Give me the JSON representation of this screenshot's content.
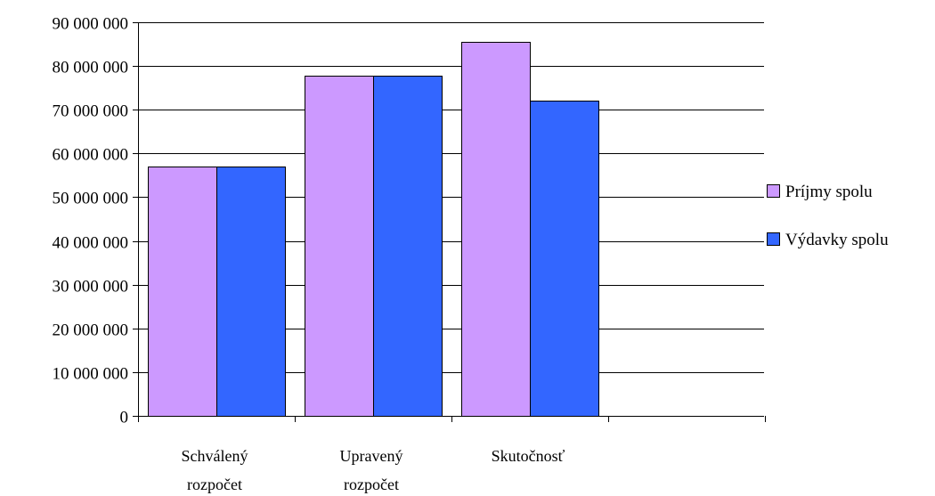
{
  "chart_data": {
    "type": "bar",
    "title": "",
    "xlabel": "",
    "ylabel": "",
    "categories": [
      [
        "Schválený",
        "rozpočet"
      ],
      [
        "Upravený",
        "rozpočet"
      ],
      [
        "Skutočnosť"
      ]
    ],
    "series": [
      {
        "name": "Príjmy spolu",
        "color": "#cc99ff",
        "values": [
          57000000,
          77700000,
          85500000
        ]
      },
      {
        "name": "Výdavky spolu",
        "color": "#3366ff",
        "values": [
          57000000,
          77700000,
          72000000
        ]
      }
    ],
    "ylim": [
      0,
      90000000
    ],
    "yticks": [
      0,
      10000000,
      20000000,
      30000000,
      40000000,
      50000000,
      60000000,
      70000000,
      80000000,
      90000000
    ],
    "ytick_labels": [
      "0",
      "10 000 000",
      "20 000 000",
      "30 000 000",
      "40 000 000",
      "50 000 000",
      "60 000 000",
      "70 000 000",
      "80 000 000",
      "90 000 000"
    ],
    "grid": true,
    "legend": "right"
  }
}
